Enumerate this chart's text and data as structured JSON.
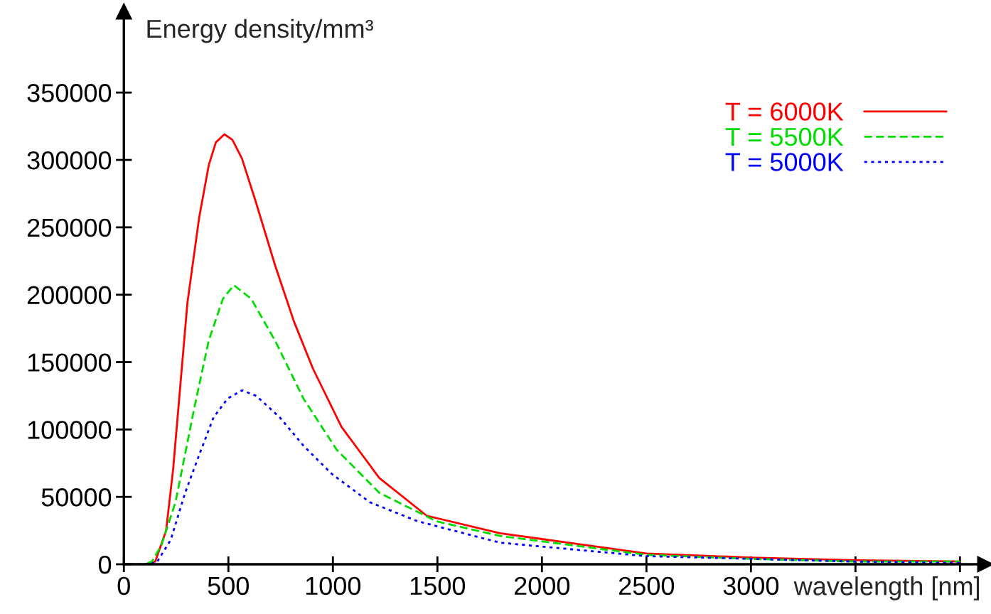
{
  "chart_data": {
    "type": "line",
    "ylabel": "Energy density/mm³",
    "xlabel": "wavelength [nm]",
    "xlim": [
      0,
      4120
    ],
    "ylim": [
      0,
      410000
    ],
    "xticks": [
      0,
      500,
      1000,
      1500,
      2000,
      2500,
      3000,
      {
        "value": 3500,
        "label": null
      },
      {
        "value": 4000,
        "label": null
      }
    ],
    "yticks": [
      0,
      50000,
      100000,
      150000,
      200000,
      250000,
      300000,
      350000
    ],
    "grid": false,
    "legend": "top right",
    "series": [
      {
        "name": "T = 6000K",
        "color": "#ff0000",
        "line_style": "solid",
        "x": [
          0,
          100,
          150,
          202,
          236,
          304,
          360,
          406,
          440,
          481,
          519,
          565,
          633,
          723,
          814,
          905,
          1041,
          1222,
          1449,
          1800,
          2500,
          3000,
          3500,
          4000
        ],
        "values": [
          0,
          0,
          2000,
          25000,
          71000,
          194000,
          257000,
          296000,
          313000,
          319000,
          315000,
          301000,
          268000,
          222000,
          180000,
          145000,
          102000,
          64000,
          36000,
          23000,
          8000,
          5000,
          3000,
          2000
        ]
      },
      {
        "name": "T = 5500K",
        "color": "#00dd00",
        "line_style": "dashed",
        "x": [
          0,
          100,
          134,
          179,
          247,
          337,
          406,
          474,
          526,
          609,
          723,
          859,
          1018,
          1222,
          1494,
          1800,
          2500,
          3000,
          3500,
          4000
        ],
        "values": [
          0,
          0,
          2000,
          14000,
          46000,
          116000,
          166000,
          197000,
          207000,
          197000,
          166000,
          123000,
          85000,
          53000,
          32000,
          21000,
          7000,
          4000,
          2000,
          2000
        ]
      },
      {
        "name": "T = 5000K",
        "color": "#0000ff",
        "line_style": "dotted",
        "x": [
          0,
          100,
          156,
          224,
          293,
          360,
          429,
          497,
          565,
          633,
          746,
          859,
          995,
          1177,
          1404,
          1800,
          2500,
          3000,
          3500,
          4000
        ],
        "values": [
          0,
          0,
          1000,
          18000,
          53000,
          81000,
          109000,
          123000,
          129000,
          125000,
          109000,
          88000,
          67000,
          46000,
          32000,
          16000,
          6000,
          4000,
          2000,
          1000
        ]
      }
    ]
  }
}
